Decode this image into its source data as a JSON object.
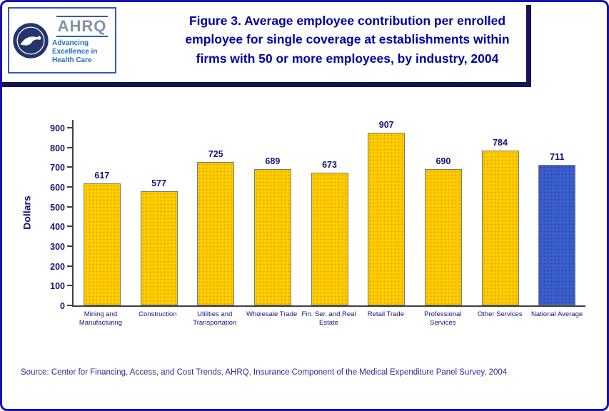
{
  "header": {
    "title_lines": [
      "Figure 3. Average employee contribution per enrolled",
      "employee for single coverage at establishments within",
      "firms with 50 or more employees, by industry, 2004"
    ],
    "logo": {
      "org": "AHRQ",
      "tagline": "Advancing Excellence in Health Care"
    }
  },
  "chart_data": {
    "type": "bar",
    "title": "Figure 3. Average employee contribution per enrolled employee for single coverage at establishments within firms with 50 or more employees, by industry, 2004",
    "categories": [
      "Mining and Manufacturing",
      "Construction",
      "Utilities and Transportation",
      "Wholesale Trade",
      "Fin. Ser. and Real Estate",
      "Retail Trade",
      "Professional Services",
      "Other Services",
      "National Average"
    ],
    "values": [
      617,
      577,
      725,
      689,
      673,
      907,
      690,
      784,
      711
    ],
    "xlabel": "",
    "ylabel": "Dollars",
    "yticks": [
      0,
      100,
      200,
      300,
      400,
      500,
      600,
      700,
      800,
      900
    ],
    "ylim": [
      0,
      940
    ],
    "grid": false,
    "legend": "none",
    "highlight_index": 8,
    "colors": {
      "bar": "#FFCC00",
      "bar_dot": "#DC9E00",
      "highlight": "#3A5FCD",
      "highlight_dot": "#27439B",
      "label": "#14147A"
    }
  },
  "footer": {
    "source": "Source: Center for Financing, Access, and Cost Trends, AHRQ, Insurance Component of the Medical Expenditure Panel Survey, 2004"
  }
}
